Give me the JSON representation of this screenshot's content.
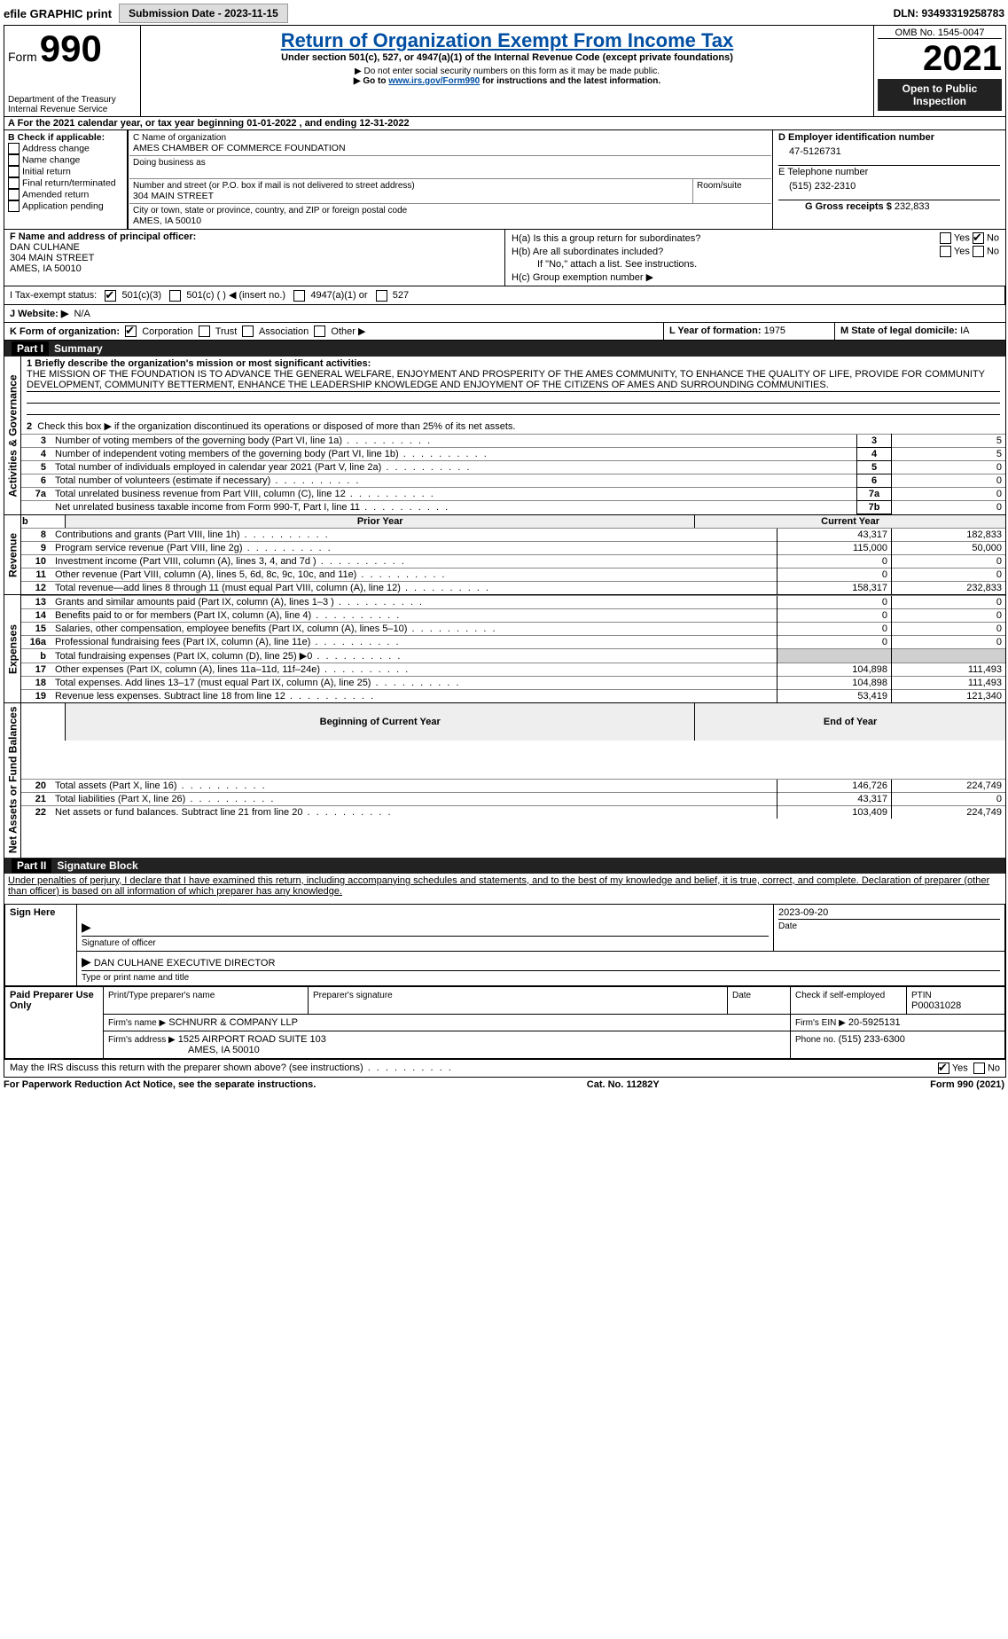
{
  "topbar": {
    "efile": "efile GRAPHIC print",
    "submission": "Submission Date - 2023-11-15",
    "dln": "DLN: 93493319258783"
  },
  "header": {
    "form_word": "Form",
    "form_num": "990",
    "dept": "Department of the Treasury",
    "irs": "Internal Revenue Service",
    "title": "Return of Organization Exempt From Income Tax",
    "sub1": "Under section 501(c), 527, or 4947(a)(1) of the Internal Revenue Code (except private foundations)",
    "sub2": "▶ Do not enter social security numbers on this form as it may be made public.",
    "sub3_a": "▶ Go to ",
    "sub3_link": "www.irs.gov/Form990",
    "sub3_b": " for instructions and the latest information.",
    "omb": "OMB No. 1545-0047",
    "year": "2021",
    "open": "Open to Public Inspection"
  },
  "lineA": "A For the 2021 calendar year, or tax year beginning 01-01-2022     , and ending 12-31-2022",
  "boxB": {
    "title": "B Check if applicable:",
    "opts": [
      "Address change",
      "Name change",
      "Initial return",
      "Final return/terminated",
      "Amended return",
      "Application pending"
    ]
  },
  "boxC": {
    "label_name": "C Name of organization",
    "name": "AMES CHAMBER OF COMMERCE FOUNDATION",
    "dba_label": "Doing business as",
    "street_label": "Number and street (or P.O. box if mail is not delivered to street address)",
    "room_label": "Room/suite",
    "street": "304 MAIN STREET",
    "city_label": "City or town, state or province, country, and ZIP or foreign postal code",
    "city": "AMES, IA  50010"
  },
  "boxD": {
    "label": "D Employer identification number",
    "val": "47-5126731"
  },
  "boxE": {
    "label": "E Telephone number",
    "val": "(515) 232-2310"
  },
  "boxG": {
    "label": "G Gross receipts $",
    "val": "232,833"
  },
  "boxF": {
    "label": "F Name and address of principal officer:",
    "name": "DAN CULHANE",
    "street": "304 MAIN STREET",
    "city": "AMES, IA  50010"
  },
  "boxH": {
    "a": "H(a)  Is this a group return for subordinates?",
    "b": "H(b)  Are all subordinates included?",
    "b2": "If \"No,\" attach a list. See instructions.",
    "c": "H(c)  Group exemption number ▶",
    "yes": "Yes",
    "no": "No"
  },
  "boxI": {
    "label": "I   Tax-exempt status:",
    "o1": "501(c)(3)",
    "o2": "501(c) (   ) ◀ (insert no.)",
    "o3": "4947(a)(1) or",
    "o4": "527"
  },
  "boxJ": {
    "label": "J    Website: ▶",
    "val": "N/A"
  },
  "boxK": {
    "label": "K Form of organization:",
    "o1": "Corporation",
    "o2": "Trust",
    "o3": "Association",
    "o4": "Other ▶"
  },
  "boxL": {
    "label": "L Year of formation:",
    "val": "1975"
  },
  "boxM": {
    "label": "M State of legal domicile:",
    "val": "IA"
  },
  "part1": {
    "header": "Summary",
    "q1": "1  Briefly describe the organization's mission or most significant activities:",
    "mission": "THE MISSION OF THE FOUNDATION IS TO ADVANCE THE GENERAL WELFARE, ENJOYMENT AND PROSPERITY OF THE AMES COMMUNITY, TO ENHANCE THE QUALITY OF LIFE, PROVIDE FOR COMMUNITY DEVELOPMENT, COMMUNITY BETTERMENT, ENHANCE THE LEADERSHIP KNOWLEDGE AND ENJOYMENT OF THE CITIZENS OF AMES AND SURROUNDING COMMUNITIES.",
    "q2": "Check this box ▶      if the organization discontinued its operations or disposed of more than 25% of its net assets.",
    "lines_gov": [
      {
        "n": "3",
        "t": "Number of voting members of the governing body (Part VI, line 1a)",
        "box": "3",
        "v": "5"
      },
      {
        "n": "4",
        "t": "Number of independent voting members of the governing body (Part VI, line 1b)",
        "box": "4",
        "v": "5"
      },
      {
        "n": "5",
        "t": "Total number of individuals employed in calendar year 2021 (Part V, line 2a)",
        "box": "5",
        "v": "0"
      },
      {
        "n": "6",
        "t": "Total number of volunteers (estimate if necessary)",
        "box": "6",
        "v": "0"
      },
      {
        "n": "7a",
        "t": "Total unrelated business revenue from Part VIII, column (C), line 12",
        "box": "7a",
        "v": "0"
      },
      {
        "n": "",
        "t": "Net unrelated business taxable income from Form 990-T, Part I, line 11",
        "box": "7b",
        "v": "0"
      }
    ],
    "prior": "Prior Year",
    "current": "Current Year",
    "rev": [
      {
        "n": "8",
        "t": "Contributions and grants (Part VIII, line 1h)",
        "p": "43,317",
        "c": "182,833"
      },
      {
        "n": "9",
        "t": "Program service revenue (Part VIII, line 2g)",
        "p": "115,000",
        "c": "50,000"
      },
      {
        "n": "10",
        "t": "Investment income (Part VIII, column (A), lines 3, 4, and 7d )",
        "p": "0",
        "c": "0"
      },
      {
        "n": "11",
        "t": "Other revenue (Part VIII, column (A), lines 5, 6d, 8c, 9c, 10c, and 11e)",
        "p": "0",
        "c": "0"
      },
      {
        "n": "12",
        "t": "Total revenue—add lines 8 through 11 (must equal Part VIII, column (A), line 12)",
        "p": "158,317",
        "c": "232,833"
      }
    ],
    "exp": [
      {
        "n": "13",
        "t": "Grants and similar amounts paid (Part IX, column (A), lines 1–3 )",
        "p": "0",
        "c": "0"
      },
      {
        "n": "14",
        "t": "Benefits paid to or for members (Part IX, column (A), line 4)",
        "p": "0",
        "c": "0"
      },
      {
        "n": "15",
        "t": "Salaries, other compensation, employee benefits (Part IX, column (A), lines 5–10)",
        "p": "0",
        "c": "0"
      },
      {
        "n": "16a",
        "t": "Professional fundraising fees (Part IX, column (A), line 11e)",
        "p": "0",
        "c": "0"
      },
      {
        "n": "b",
        "t": "Total fundraising expenses (Part IX, column (D), line 25) ▶0",
        "p": "shade",
        "c": "shade"
      },
      {
        "n": "17",
        "t": "Other expenses (Part IX, column (A), lines 11a–11d, 11f–24e)",
        "p": "104,898",
        "c": "111,493"
      },
      {
        "n": "18",
        "t": "Total expenses. Add lines 13–17 (must equal Part IX, column (A), line 25)",
        "p": "104,898",
        "c": "111,493"
      },
      {
        "n": "19",
        "t": "Revenue less expenses. Subtract line 18 from line 12",
        "p": "53,419",
        "c": "121,340"
      }
    ],
    "begin": "Beginning of Current Year",
    "end": "End of Year",
    "net": [
      {
        "n": "20",
        "t": "Total assets (Part X, line 16)",
        "p": "146,726",
        "c": "224,749"
      },
      {
        "n": "21",
        "t": "Total liabilities (Part X, line 26)",
        "p": "43,317",
        "c": "0"
      },
      {
        "n": "22",
        "t": "Net assets or fund balances. Subtract line 21 from line 20",
        "p": "103,409",
        "c": "224,749"
      }
    ],
    "vl_gov": "Activities & Governance",
    "vl_rev": "Revenue",
    "vl_exp": "Expenses",
    "vl_net": "Net Assets or Fund Balances"
  },
  "part2": {
    "header": "Signature Block",
    "decl": "Under penalties of perjury, I declare that I have examined this return, including accompanying schedules and statements, and to the best of my knowledge and belief, it is true, correct, and complete. Declaration of preparer (other than officer) is based on all information of which preparer has any knowledge.",
    "sign_here": "Sign Here",
    "sig_officer": "Signature of officer",
    "date": "Date",
    "date_val": "2023-09-20",
    "name_title": "DAN CULHANE  EXECUTIVE DIRECTOR",
    "type_name": "Type or print name and title",
    "paid": "Paid Preparer Use Only",
    "prep_name_h": "Print/Type preparer's name",
    "prep_sig_h": "Preparer's signature",
    "date_h": "Date",
    "check_self": "Check        if self-employed",
    "ptin_h": "PTIN",
    "ptin": "P00031028",
    "firm_name_l": "Firm's name      ▶",
    "firm_name": "SCHNURR & COMPANY LLP",
    "firm_ein_l": "Firm's EIN ▶",
    "firm_ein": "20-5925131",
    "firm_addr_l": "Firm's address ▶",
    "firm_addr1": "1525 AIRPORT ROAD SUITE 103",
    "firm_addr2": "AMES, IA  50010",
    "phone_l": "Phone no.",
    "phone": "(515) 233-6300",
    "may_irs": "May the IRS discuss this return with the preparer shown above? (see instructions)",
    "yes": "Yes",
    "no": "No"
  },
  "footer": {
    "pra": "For Paperwork Reduction Act Notice, see the separate instructions.",
    "cat": "Cat. No. 11282Y",
    "form": "Form 990 (2021)"
  }
}
